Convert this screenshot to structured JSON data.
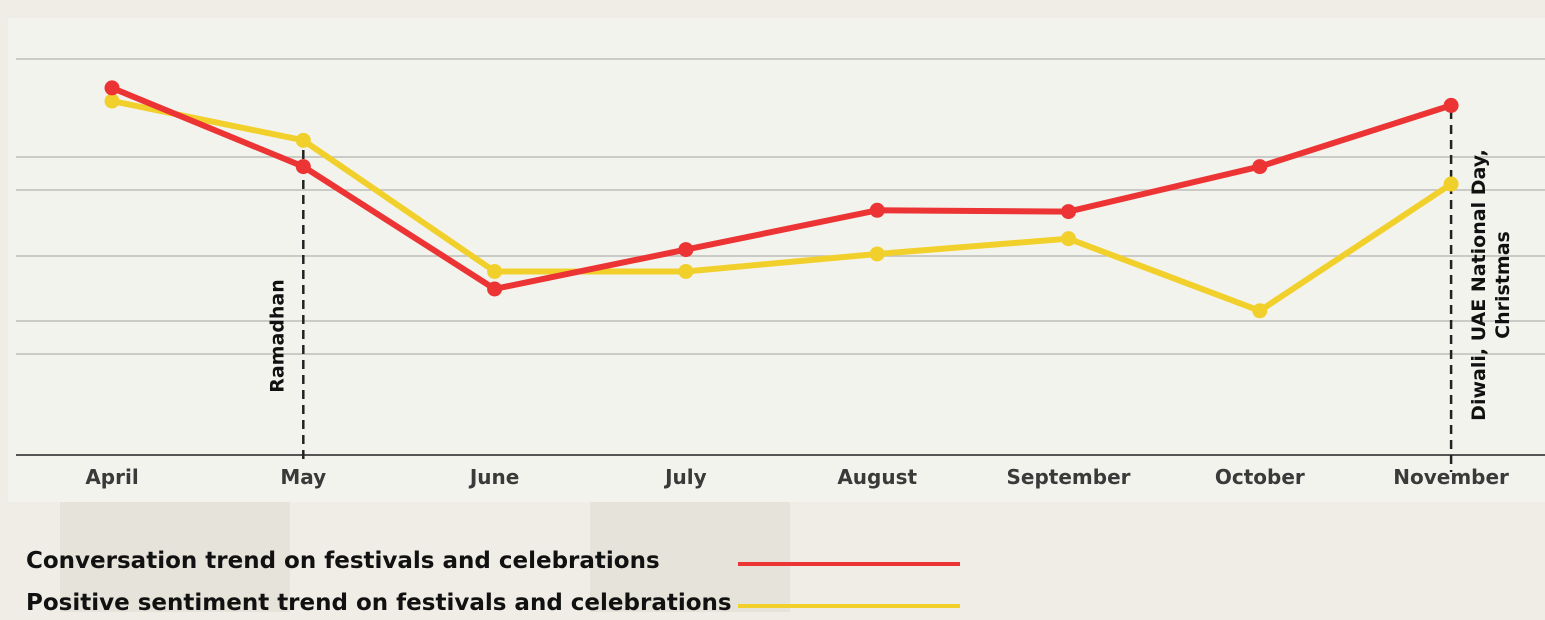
{
  "colors": {
    "conversation": "#ec3434",
    "sentiment": "#f2d02c",
    "grid": "#bdbdb8",
    "axis": "#555555",
    "annotation": "#222222"
  },
  "legend": {
    "conversation_label": "Conversation trend on festivals and celebrations",
    "sentiment_label": "Positive sentiment trend on festivals and celebrations"
  },
  "chart_data": {
    "type": "line",
    "categories": [
      "April",
      "May",
      "June",
      "July",
      "August",
      "September",
      "October",
      "November"
    ],
    "ylim": [
      0,
      100
    ],
    "grid": true,
    "legend_placement": "bottom-left",
    "series": [
      {
        "name": "Conversation trend on festivals and celebrations",
        "color": "#ec3434",
        "values": [
          84,
          66,
          38,
          47,
          56,
          55.7,
          66,
          80
        ]
      },
      {
        "name": "Positive sentiment trend on festivals and celebrations",
        "color": "#f2d02c",
        "values": [
          81,
          72,
          42,
          42,
          46,
          49.5,
          33,
          62
        ]
      }
    ],
    "annotations": [
      {
        "category": "May",
        "label": "Ramadhan"
      },
      {
        "category": "November",
        "label_lines": [
          "Diwali, UAE National Day,",
          "Christmas"
        ]
      }
    ]
  }
}
